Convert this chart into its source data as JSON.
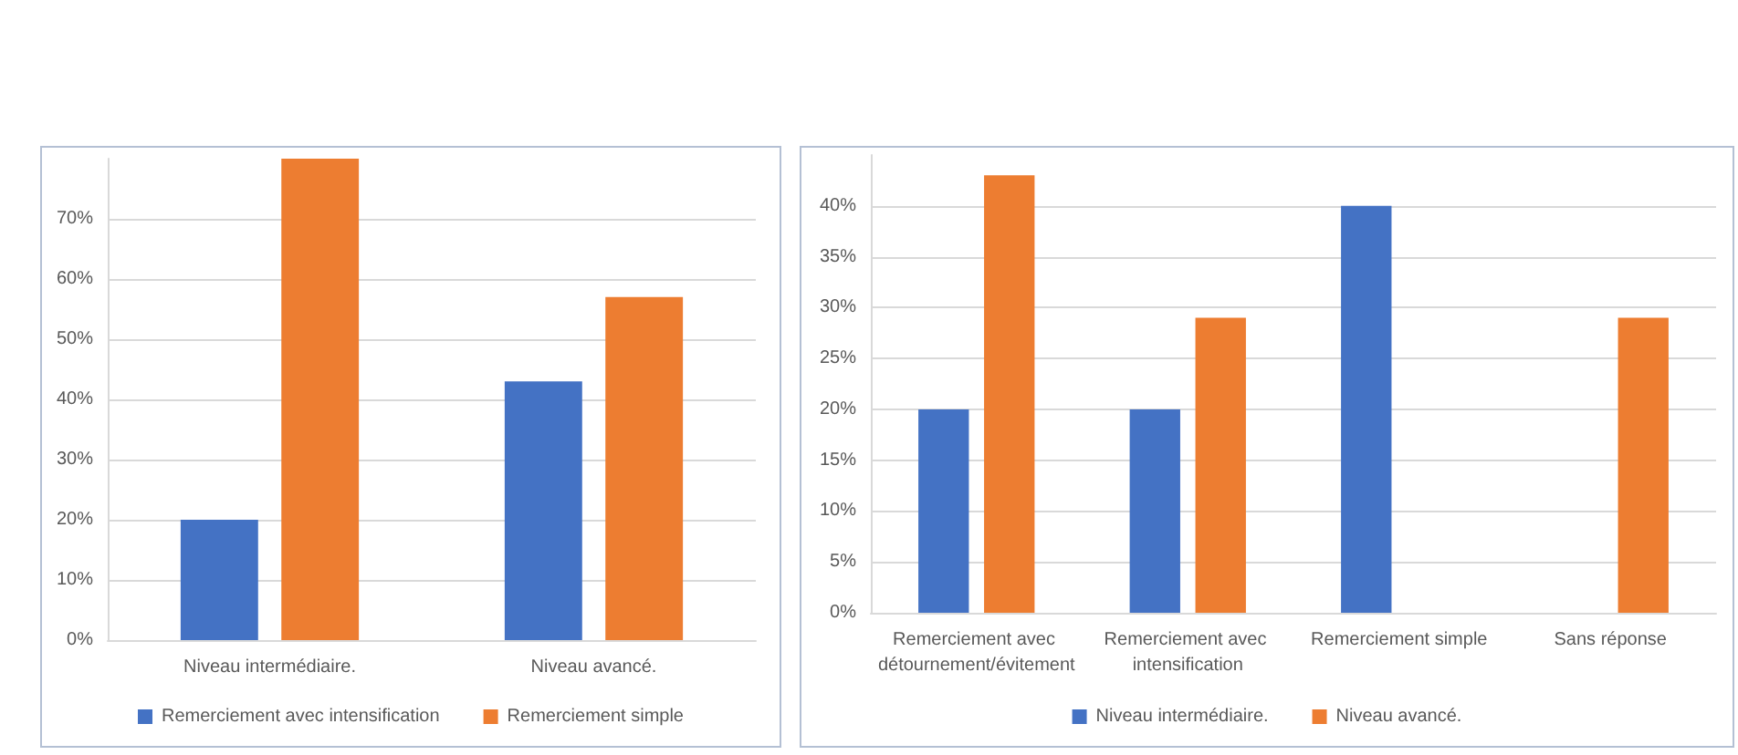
{
  "chart_data": [
    {
      "type": "bar",
      "categories": [
        "Niveau intermédiaire.",
        "Niveau avancé."
      ],
      "series": [
        {
          "name": "Remerciement avec intensification",
          "color": "#4472c4",
          "values": [
            20,
            43
          ]
        },
        {
          "name": "Remerciement simple",
          "color": "#ed7d31",
          "values": [
            80,
            57
          ]
        }
      ],
      "ylim": [
        0,
        80
      ],
      "yticks": [
        {
          "value": 0,
          "label": "0%"
        },
        {
          "value": 10,
          "label": "10%"
        },
        {
          "value": 20,
          "label": "20%"
        },
        {
          "value": 30,
          "label": "30%"
        },
        {
          "value": 40,
          "label": "40%"
        },
        {
          "value": 50,
          "label": "50%"
        },
        {
          "value": 60,
          "label": "60%"
        },
        {
          "value": 70,
          "label": "70%"
        }
      ],
      "grid": "y",
      "legend": "bottom"
    },
    {
      "type": "bar",
      "categories": [
        "Remerciement avec détournement/évitement",
        "Remerciement avec intensification",
        "Remerciement simple",
        "Sans réponse"
      ],
      "series": [
        {
          "name": "Niveau intermédiaire.",
          "color": "#4472c4",
          "values": [
            20,
            20,
            40,
            0
          ]
        },
        {
          "name": "Niveau avancé.",
          "color": "#ed7d31",
          "values": [
            43,
            29,
            0,
            29
          ]
        }
      ],
      "ylim": [
        0,
        45
      ],
      "yticks": [
        {
          "value": 0,
          "label": "0%"
        },
        {
          "value": 5,
          "label": "5%"
        },
        {
          "value": 10,
          "label": "10%"
        },
        {
          "value": 15,
          "label": "15%"
        },
        {
          "value": 20,
          "label": "20%"
        },
        {
          "value": 25,
          "label": "25%"
        },
        {
          "value": 30,
          "label": "30%"
        },
        {
          "value": 35,
          "label": "35%"
        },
        {
          "value": 40,
          "label": "40%"
        }
      ],
      "grid": "y",
      "legend": "bottom"
    }
  ]
}
